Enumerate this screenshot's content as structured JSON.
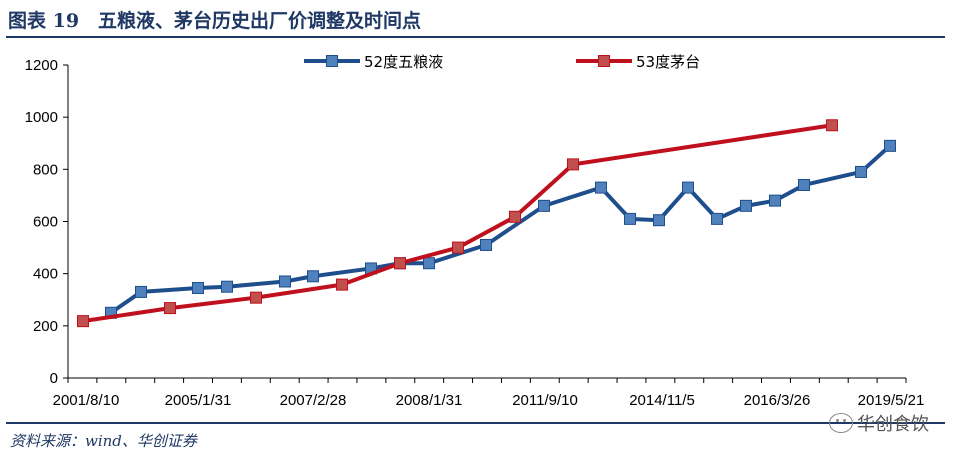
{
  "header": {
    "title": "图表 19　五粮液、茅台历史出厂价调整及时间点"
  },
  "footer": {
    "source": "资料来源：wind、华创证券",
    "watermark": "华创食饮"
  },
  "chart_data": {
    "type": "line",
    "title": "",
    "xlabel": "",
    "ylabel": "",
    "ylim": [
      0,
      1200
    ],
    "yticks": [
      0,
      200,
      400,
      600,
      800,
      1000,
      1200
    ],
    "x_tick_labels": [
      "2001/8/10",
      "2005/1/31",
      "2007/2/28",
      "2008/1/31",
      "2011/9/10",
      "2014/11/5",
      "2016/3/26",
      "2019/5/21"
    ],
    "legend_placement": "top",
    "grid": false,
    "series": [
      {
        "name": "52度五粮液",
        "color": "#1f4e8c",
        "marker_color": "#4f81bd",
        "values": [
          250,
          330,
          345,
          350,
          370,
          390,
          420,
          440,
          440,
          510,
          660,
          730,
          610,
          605,
          730,
          610,
          660,
          680,
          740,
          790,
          890
        ]
      },
      {
        "name": "53度茅台",
        "color": "#c0101e",
        "marker_color": "#c0504d",
        "values": [
          218,
          268,
          308,
          358,
          440,
          500,
          618,
          819,
          969
        ]
      }
    ]
  }
}
